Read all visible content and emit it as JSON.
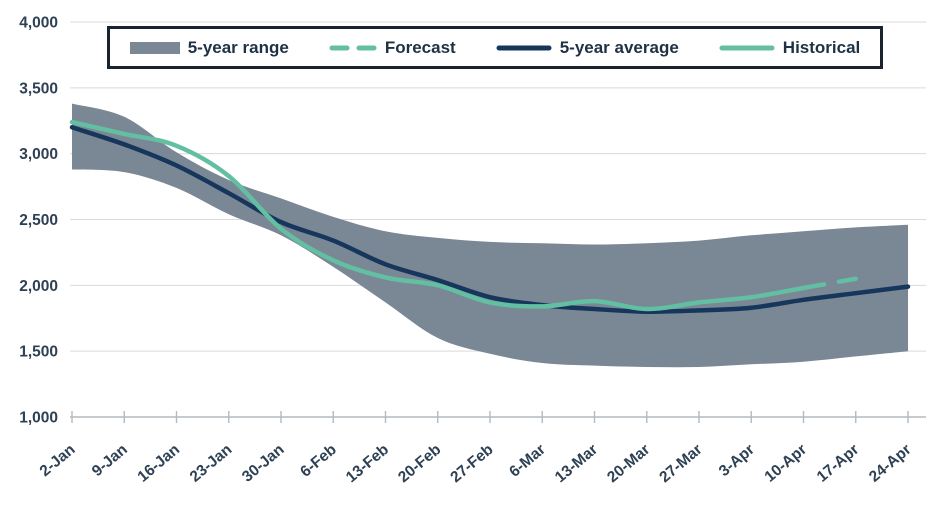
{
  "colors": {
    "band": "#7A8795",
    "navy": "#16365C",
    "teal": "#63BFA2",
    "grid": "#D9D9D9",
    "axis": "#B3BAC1",
    "axis_text": "#2E4154",
    "legend_text": "#1F3245",
    "legend_border": "#1A242E",
    "background": "#FFFFFF"
  },
  "legend": {
    "items": [
      {
        "label": "5-year range",
        "swatch": "band"
      },
      {
        "label": "Forecast",
        "swatch": "dashed-teal"
      },
      {
        "label": "5-year average",
        "swatch": "navy"
      },
      {
        "label": "Historical",
        "swatch": "teal"
      }
    ]
  },
  "chart_data": {
    "type": "line",
    "title": "",
    "categories": [
      "2-Jan",
      "9-Jan",
      "16-Jan",
      "23-Jan",
      "30-Jan",
      "6-Feb",
      "13-Feb",
      "20-Feb",
      "27-Feb",
      "6-Mar",
      "13-Mar",
      "20-Mar",
      "27-Mar",
      "3-Apr",
      "10-Apr",
      "17-Apr",
      "24-Apr"
    ],
    "series": [
      {
        "name": "5-year range",
        "type": "band",
        "color_key": "band",
        "top": [
          3380,
          3280,
          3010,
          2800,
          2660,
          2520,
          2410,
          2360,
          2330,
          2320,
          2310,
          2320,
          2340,
          2380,
          2410,
          2440,
          2460
        ],
        "bottom": [
          2880,
          2860,
          2740,
          2540,
          2380,
          2140,
          1870,
          1600,
          1480,
          1410,
          1390,
          1380,
          1380,
          1400,
          1420,
          1460,
          1500
        ]
      },
      {
        "name": "Forecast",
        "type": "line",
        "style": "dashed",
        "color_key": "teal",
        "values": [
          null,
          null,
          null,
          null,
          null,
          null,
          null,
          null,
          null,
          null,
          null,
          null,
          null,
          null,
          1980,
          2050,
          null
        ]
      },
      {
        "name": "5-year average",
        "type": "line",
        "style": "solid",
        "color_key": "navy",
        "values": [
          3200,
          3070,
          2910,
          2700,
          2480,
          2340,
          2160,
          2040,
          1910,
          1850,
          1820,
          1800,
          1810,
          1830,
          1890,
          1940,
          1990
        ]
      },
      {
        "name": "Historical",
        "type": "line",
        "style": "solid",
        "color_key": "teal",
        "values": [
          3240,
          3150,
          3060,
          2830,
          2430,
          2190,
          2060,
          2000,
          1870,
          1840,
          1880,
          1820,
          1870,
          1910,
          1980,
          null,
          null
        ]
      }
    ],
    "ylim": [
      1000,
      4000
    ],
    "yticks": [
      {
        "value": 4000,
        "label": "4,000"
      },
      {
        "value": 3500,
        "label": "3,500"
      },
      {
        "value": 3000,
        "label": "3,000"
      },
      {
        "value": 2500,
        "label": "2,500"
      },
      {
        "value": 2000,
        "label": "2,000"
      },
      {
        "value": 1500,
        "label": "1,500"
      },
      {
        "value": 1000,
        "label": "1,000"
      }
    ],
    "grid": true,
    "legend_position": "top-center"
  }
}
